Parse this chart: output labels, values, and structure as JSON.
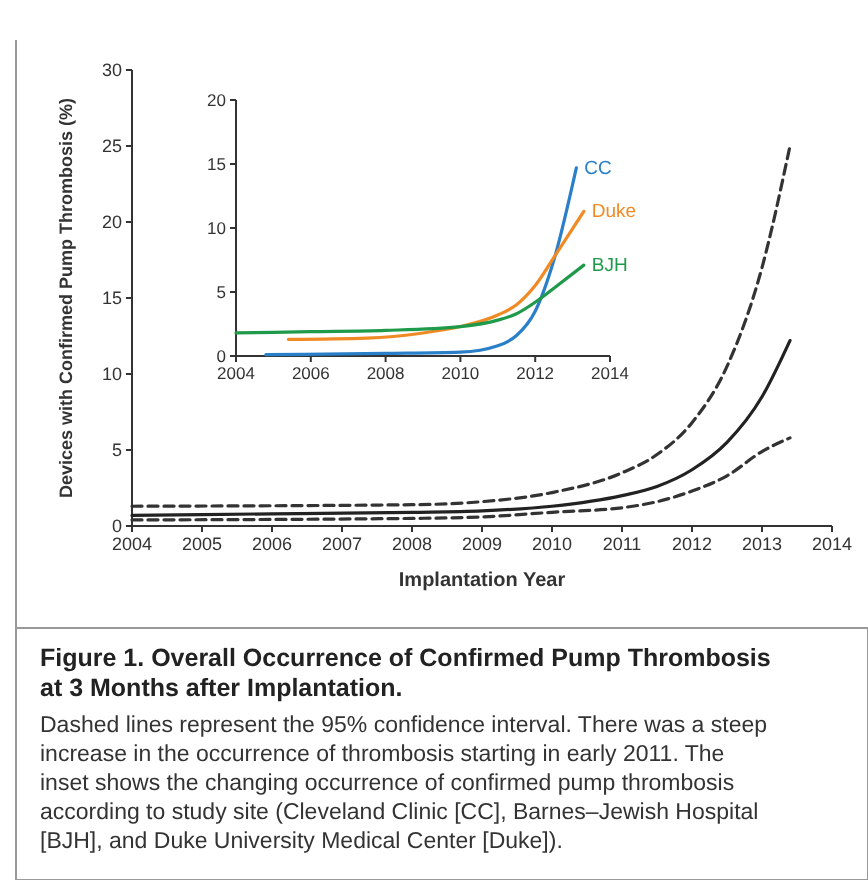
{
  "chart_data": [
    {
      "type": "line",
      "title": "Figure 1. Overall Occurrence of Confirmed Pump Thrombosis at 3 Months after Implantation.",
      "xlabel": "Implantation Year",
      "ylabel": "Devices with Confirmed Pump Thrombosis (%)",
      "xlim": [
        2004,
        2014
      ],
      "ylim": [
        0,
        30
      ],
      "xticks": [
        2004,
        2005,
        2006,
        2007,
        2008,
        2009,
        2010,
        2011,
        2012,
        2013,
        2014
      ],
      "yticks": [
        0,
        5,
        10,
        15,
        20,
        25,
        30
      ],
      "grid": false,
      "annotations": [
        "Dashed lines represent the 95% confidence interval. There was a steep increase in the occurrence of thrombosis starting in early 2011. The inset shows the changing occurrence of confirmed pump thrombosis according to study site (Cleveland Clinic [CC], Barnes–Jewish Hospital [BJH], and Duke University Medical Center [Duke])."
      ],
      "series": [
        {
          "color": "#222222",
          "line_style": "solid",
          "x": [
            2004,
            2006,
            2008,
            2009,
            2010,
            2011,
            2011.5,
            2012,
            2012.5,
            2013,
            2013.4
          ],
          "values": [
            0.7,
            0.8,
            0.9,
            1.0,
            1.3,
            2.0,
            2.6,
            3.7,
            5.5,
            8.5,
            12.2
          ]
        },
        {
          "color": "#333333",
          "line_style": "dashed",
          "x": [
            2004,
            2008,
            2009,
            2010,
            2011,
            2011.5,
            2012,
            2012.5,
            2013,
            2013.4
          ],
          "values": [
            1.3,
            1.4,
            1.6,
            2.2,
            3.5,
            4.7,
            6.8,
            10.5,
            17,
            25
          ]
        },
        {
          "color": "#333333",
          "line_style": "dashed",
          "x": [
            2004,
            2008,
            2009,
            2010,
            2011,
            2011.5,
            2012,
            2012.5,
            2013,
            2013.4
          ],
          "values": [
            0.4,
            0.5,
            0.6,
            0.9,
            1.2,
            1.6,
            2.3,
            3.3,
            4.9,
            5.8
          ]
        }
      ]
    },
    {
      "type": "line",
      "xlim": [
        2004,
        2014
      ],
      "ylim": [
        0,
        20
      ],
      "xticks": [
        2004,
        2006,
        2008,
        2010,
        2012,
        2014
      ],
      "yticks": [
        0,
        5,
        10,
        15,
        20
      ],
      "grid": false,
      "series": [
        {
          "name": "CC",
          "color": "#2a7fc9",
          "x": [
            2004.8,
            2008,
            2010,
            2011,
            2011.5,
            2012,
            2012.5,
            2013.1
          ],
          "values": [
            0.1,
            0.2,
            0.3,
            0.8,
            1.6,
            3.5,
            7.5,
            14.7
          ]
        },
        {
          "name": "Duke",
          "color": "#f08a24",
          "x": [
            2005.4,
            2007.5,
            2009,
            2010,
            2011,
            2011.5,
            2012,
            2012.5,
            2013.3
          ],
          "values": [
            1.3,
            1.4,
            1.8,
            2.3,
            3.2,
            4.0,
            5.5,
            7.7,
            11.3
          ]
        },
        {
          "name": "BJH",
          "color": "#1f9a4a",
          "x": [
            2004,
            2006,
            2008,
            2010,
            2011,
            2011.5,
            2012,
            2012.5,
            2013.3
          ],
          "values": [
            1.8,
            1.9,
            2.0,
            2.3,
            2.8,
            3.3,
            4.2,
            5.3,
            7.1
          ]
        }
      ]
    }
  ]
}
